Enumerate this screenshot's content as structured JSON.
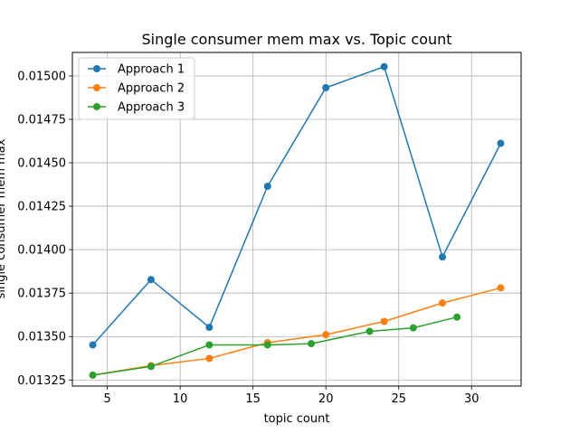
{
  "chart_data": {
    "type": "line",
    "title": "Single consumer mem max vs. Topic count",
    "xlabel": "topic count",
    "ylabel": "single consumer mem max",
    "xlim": [
      2.6,
      33.4
    ],
    "ylim": [
      0.013215,
      0.015135
    ],
    "xticks": [
      5,
      10,
      15,
      20,
      25,
      30
    ],
    "yticks": [
      0.01325,
      0.0135,
      0.01375,
      0.014,
      0.01425,
      0.0145,
      0.01475,
      0.015
    ],
    "ytick_labels": [
      "0.01325",
      "0.01350",
      "0.01375",
      "0.01400",
      "0.01425",
      "0.01450",
      "0.01475",
      "0.01500"
    ],
    "grid": true,
    "legend_position": "top-left",
    "series": [
      {
        "name": "Approach 1",
        "color": "#1f77b4",
        "x": [
          4,
          8,
          12,
          16,
          20,
          24,
          28,
          32
        ],
        "y": [
          0.013452,
          0.013828,
          0.013553,
          0.014365,
          0.014932,
          0.015053,
          0.013958,
          0.014612
        ]
      },
      {
        "name": "Approach 2",
        "color": "#ff7f0e",
        "x": [
          4,
          8,
          12,
          16,
          20,
          24,
          28,
          32
        ],
        "y": [
          0.013278,
          0.013333,
          0.013374,
          0.013465,
          0.013511,
          0.013587,
          0.013693,
          0.01378
        ]
      },
      {
        "name": "Approach 3",
        "color": "#2ca02c",
        "x": [
          4,
          8,
          12,
          16,
          19,
          23,
          26,
          29
        ],
        "y": [
          0.013278,
          0.013328,
          0.013452,
          0.013452,
          0.013459,
          0.01353,
          0.01355,
          0.013612
        ]
      }
    ]
  }
}
